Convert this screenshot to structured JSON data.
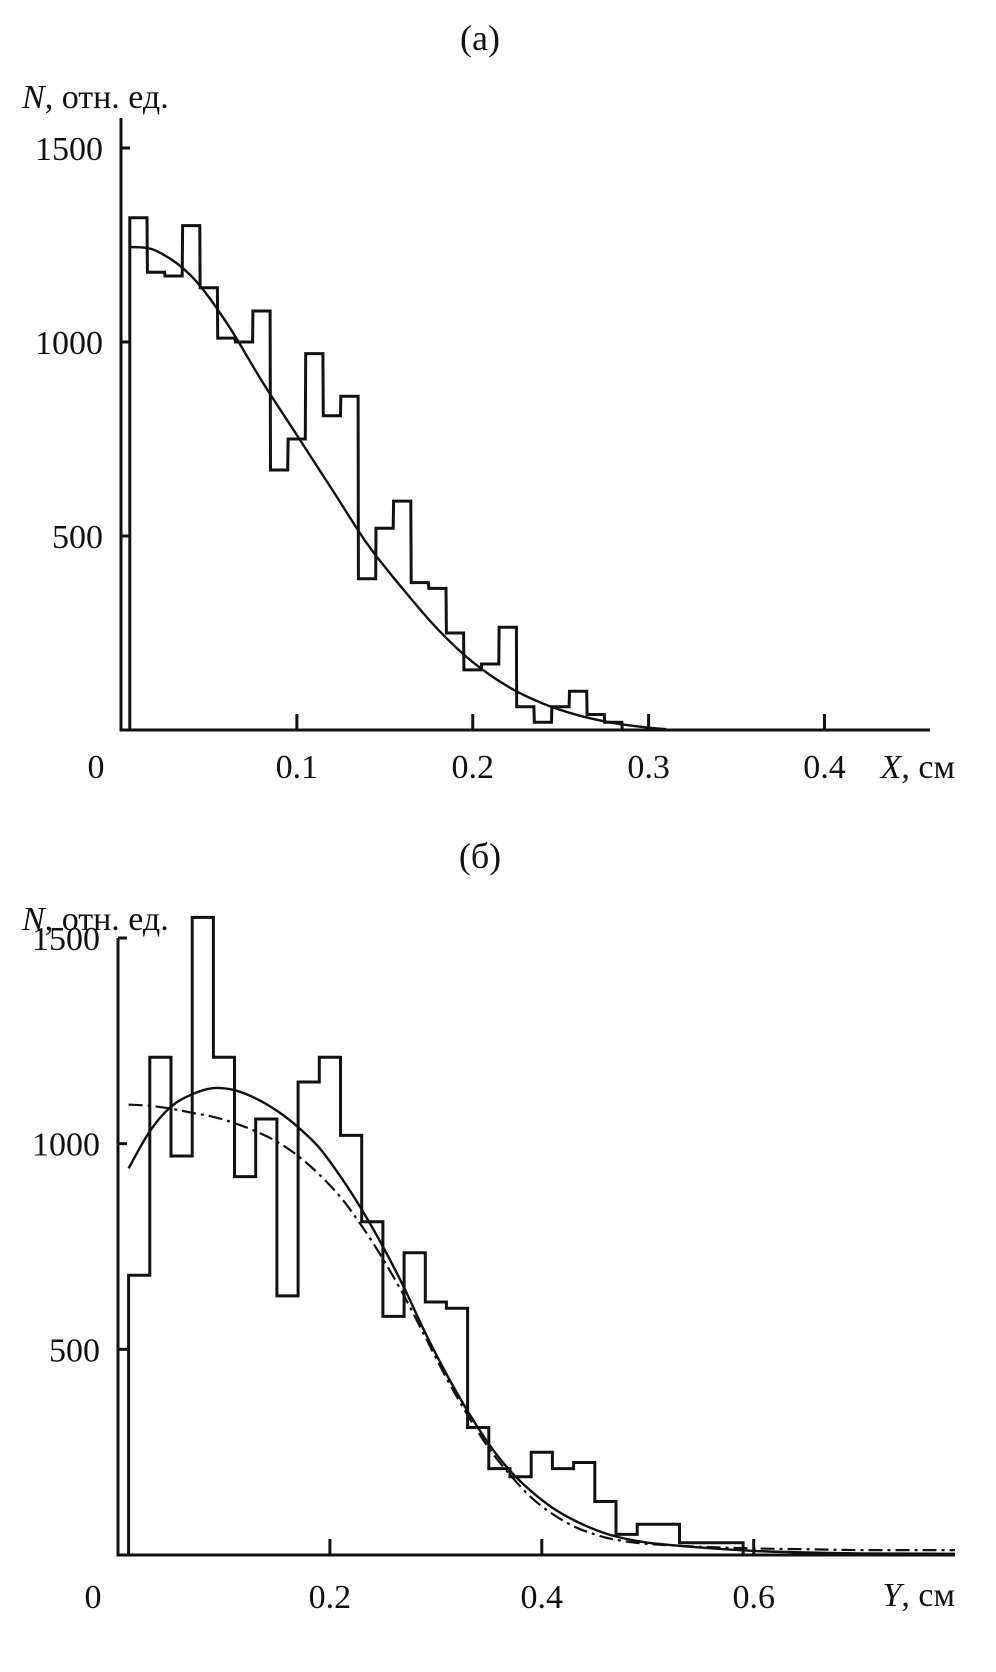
{
  "chart_data": [
    {
      "type": "histogram",
      "title": "(а)",
      "ylabel_var": "N",
      "ylabel_unit": ", отн. ед.",
      "xlabel_var": "X",
      "xlabel_unit": ", см",
      "xlim": [
        0,
        0.46
      ],
      "ylim": [
        0,
        1500
      ],
      "origin_label": "0",
      "x_ticks": [
        {
          "value": 0.1,
          "label": "0.1"
        },
        {
          "value": 0.2,
          "label": "0.2"
        },
        {
          "value": 0.3,
          "label": "0.3"
        },
        {
          "value": 0.4,
          "label": "0.4"
        }
      ],
      "y_ticks": [
        {
          "value": 500,
          "label": "500"
        },
        {
          "value": 1000,
          "label": "1000"
        },
        {
          "value": 1500,
          "label": "1500"
        }
      ],
      "histogram": {
        "bin_width": 0.0098,
        "bins": [
          {
            "x0": 0.005,
            "y": 1320
          },
          {
            "x0": 0.015,
            "y": 1180
          },
          {
            "x0": 0.025,
            "y": 1170
          },
          {
            "x0": 0.035,
            "y": 1300
          },
          {
            "x0": 0.045,
            "y": 1140
          },
          {
            "x0": 0.055,
            "y": 1010
          },
          {
            "x0": 0.065,
            "y": 1000
          },
          {
            "x0": 0.075,
            "y": 1080
          },
          {
            "x0": 0.085,
            "y": 670
          },
          {
            "x0": 0.095,
            "y": 750
          },
          {
            "x0": 0.105,
            "y": 970
          },
          {
            "x0": 0.115,
            "y": 810
          },
          {
            "x0": 0.125,
            "y": 860
          },
          {
            "x0": 0.135,
            "y": 390
          },
          {
            "x0": 0.145,
            "y": 520
          },
          {
            "x0": 0.155,
            "y": 590
          },
          {
            "x0": 0.165,
            "y": 380
          },
          {
            "x0": 0.175,
            "y": 365
          },
          {
            "x0": 0.185,
            "y": 250
          },
          {
            "x0": 0.195,
            "y": 155
          },
          {
            "x0": 0.205,
            "y": 170
          },
          {
            "x0": 0.215,
            "y": 265
          },
          {
            "x0": 0.225,
            "y": 60
          },
          {
            "x0": 0.235,
            "y": 20
          },
          {
            "x0": 0.245,
            "y": 60
          },
          {
            "x0": 0.255,
            "y": 100
          },
          {
            "x0": 0.265,
            "y": 40
          },
          {
            "x0": 0.275,
            "y": 20
          },
          {
            "x0": 0.285,
            "y": 0
          }
        ]
      },
      "fit_curves": [
        {
          "style": "solid",
          "x": [
            0.005,
            0.02,
            0.04,
            0.06,
            0.08,
            0.1,
            0.12,
            0.14,
            0.16,
            0.18,
            0.2,
            0.22,
            0.24,
            0.26,
            0.28,
            0.3,
            0.31
          ],
          "y": [
            1245,
            1235,
            1170,
            1050,
            900,
            760,
            620,
            480,
            365,
            260,
            175,
            112,
            68,
            38,
            18,
            6,
            2
          ]
        }
      ]
    },
    {
      "type": "histogram",
      "title": "(б)",
      "ylabel_var": "N",
      "ylabel_unit": ", отн. ед.",
      "xlabel_var": "Y",
      "xlabel_unit": ", см",
      "xlim": [
        0,
        0.79
      ],
      "ylim": [
        0,
        1500
      ],
      "origin_label": "0",
      "x_ticks": [
        {
          "value": 0.2,
          "label": "0.2"
        },
        {
          "value": 0.4,
          "label": "0.4"
        },
        {
          "value": 0.6,
          "label": "0.6"
        }
      ],
      "y_ticks": [
        {
          "value": 500,
          "label": "500"
        },
        {
          "value": 1000,
          "label": "1000"
        },
        {
          "value": 1500,
          "label": "1500"
        }
      ],
      "histogram": {
        "bin_width": 0.02,
        "bins": [
          {
            "x0": 0.01,
            "y": 680
          },
          {
            "x0": 0.03,
            "y": 1210
          },
          {
            "x0": 0.05,
            "y": 970
          },
          {
            "x0": 0.07,
            "y": 1550
          },
          {
            "x0": 0.09,
            "y": 1210
          },
          {
            "x0": 0.11,
            "y": 920
          },
          {
            "x0": 0.13,
            "y": 1060
          },
          {
            "x0": 0.15,
            "y": 630
          },
          {
            "x0": 0.17,
            "y": 1150
          },
          {
            "x0": 0.19,
            "y": 1210
          },
          {
            "x0": 0.21,
            "y": 1020
          },
          {
            "x0": 0.23,
            "y": 810
          },
          {
            "x0": 0.25,
            "y": 580
          },
          {
            "x0": 0.27,
            "y": 735
          },
          {
            "x0": 0.29,
            "y": 615
          },
          {
            "x0": 0.31,
            "y": 600
          },
          {
            "x0": 0.33,
            "y": 310
          },
          {
            "x0": 0.35,
            "y": 210
          },
          {
            "x0": 0.37,
            "y": 190
          },
          {
            "x0": 0.39,
            "y": 250
          },
          {
            "x0": 0.41,
            "y": 210
          },
          {
            "x0": 0.43,
            "y": 225
          },
          {
            "x0": 0.45,
            "y": 130
          },
          {
            "x0": 0.47,
            "y": 50
          },
          {
            "x0": 0.49,
            "y": 75
          },
          {
            "x0": 0.51,
            "y": 75
          },
          {
            "x0": 0.53,
            "y": 30
          },
          {
            "x0": 0.55,
            "y": 30
          },
          {
            "x0": 0.57,
            "y": 30
          },
          {
            "x0": 0.59,
            "y": 0
          }
        ]
      },
      "fit_curves": [
        {
          "style": "solid",
          "x": [
            0.01,
            0.03,
            0.05,
            0.07,
            0.09,
            0.11,
            0.13,
            0.15,
            0.17,
            0.19,
            0.21,
            0.23,
            0.25,
            0.27,
            0.29,
            0.31,
            0.33,
            0.35,
            0.37,
            0.39,
            0.41,
            0.43,
            0.45,
            0.47,
            0.5,
            0.55,
            0.6,
            0.65,
            0.7,
            0.79
          ],
          "y": [
            940,
            1030,
            1090,
            1120,
            1135,
            1130,
            1110,
            1080,
            1040,
            990,
            920,
            840,
            750,
            650,
            540,
            440,
            350,
            270,
            205,
            155,
            115,
            85,
            62,
            45,
            30,
            18,
            10,
            6,
            4,
            3
          ]
        },
        {
          "style": "dash-dot",
          "x": [
            0.01,
            0.03,
            0.05,
            0.07,
            0.09,
            0.11,
            0.13,
            0.15,
            0.17,
            0.19,
            0.21,
            0.23,
            0.25,
            0.27,
            0.29,
            0.31,
            0.33,
            0.35,
            0.37,
            0.39,
            0.41,
            0.43,
            0.45,
            0.47,
            0.5,
            0.55,
            0.6,
            0.65,
            0.7,
            0.79
          ],
          "y": [
            1095,
            1092,
            1085,
            1075,
            1065,
            1050,
            1030,
            1005,
            970,
            925,
            870,
            800,
            720,
            630,
            530,
            430,
            340,
            260,
            195,
            140,
            100,
            70,
            50,
            37,
            27,
            20,
            16,
            14,
            12,
            12
          ]
        }
      ]
    }
  ]
}
